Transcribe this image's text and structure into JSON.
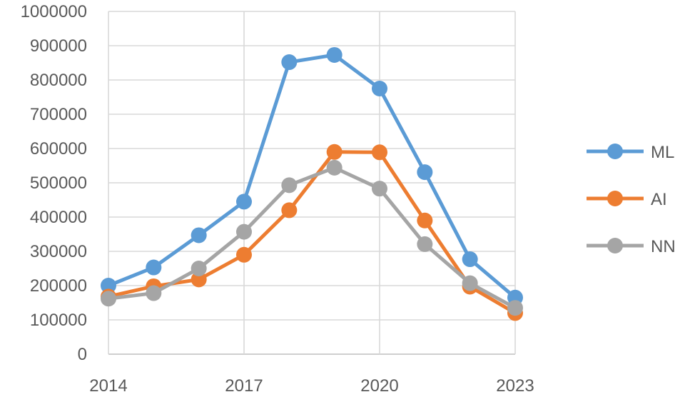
{
  "chart_data": {
    "type": "line",
    "title": "",
    "xlabel": "",
    "ylabel": "",
    "x": [
      2014,
      2015,
      2016,
      2017,
      2018,
      2019,
      2020,
      2021,
      2022,
      2023
    ],
    "xticks": [
      "2014",
      "2017",
      "2020",
      "2023"
    ],
    "yticks": [
      "0",
      "100000",
      "200000",
      "300000",
      "400000",
      "500000",
      "600000",
      "700000",
      "800000",
      "900000",
      "1000000"
    ],
    "ylim": [
      0,
      1000000
    ],
    "grid": true,
    "legend_position": "right",
    "series": [
      {
        "name": "ML",
        "color": "#5B9BD5",
        "values": [
          200000,
          253000,
          347000,
          445000,
          852000,
          873000,
          775000,
          531000,
          277000,
          165000
        ]
      },
      {
        "name": "AI",
        "color": "#ED7D31",
        "values": [
          168000,
          198000,
          218000,
          290000,
          420000,
          590000,
          589000,
          390000,
          197000,
          120000
        ]
      },
      {
        "name": "NN",
        "color": "#A5A5A5",
        "values": [
          162000,
          178000,
          250000,
          357000,
          493000,
          544000,
          483000,
          321000,
          207000,
          135000
        ]
      }
    ]
  }
}
